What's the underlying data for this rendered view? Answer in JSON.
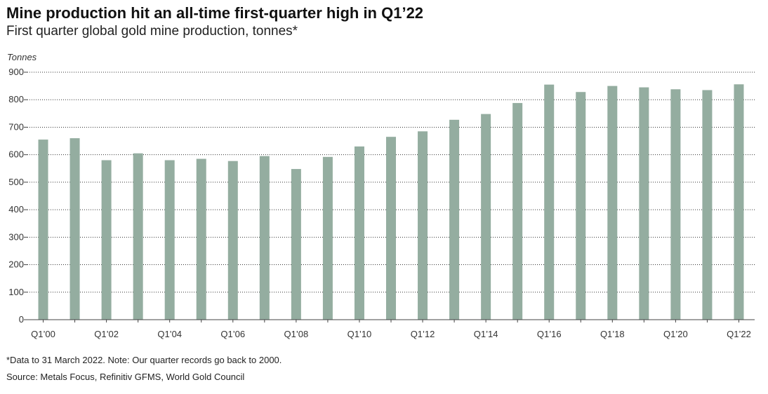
{
  "header": {
    "title": "Mine production hit an all-time first-quarter high in Q1’22",
    "subtitle": "First quarter global gold mine production, tonnes*"
  },
  "footer": {
    "note": "*Data to 31 March 2022. Note: Our quarter records go back to 2000.",
    "source": "Source: Metals Focus, Refinitiv GFMS, World Gold Council"
  },
  "colors": {
    "bar": "#94ada0",
    "grid": "#333333",
    "axis": "#444444"
  },
  "chart_data": {
    "type": "bar",
    "title": "Mine production hit an all-time first-quarter high in Q1’22",
    "subtitle": "First quarter global gold mine production, tonnes*",
    "xlabel": "",
    "ylabel": "Tonnes",
    "ylim": [
      0,
      900
    ],
    "yticks": [
      0,
      100,
      200,
      300,
      400,
      500,
      600,
      700,
      800,
      900
    ],
    "grid": true,
    "legend": "none",
    "categories": [
      "Q1’00",
      "Q1’01",
      "Q1’02",
      "Q1’03",
      "Q1’04",
      "Q1’05",
      "Q1’06",
      "Q1’07",
      "Q1’08",
      "Q1’09",
      "Q1’10",
      "Q1’11",
      "Q1’12",
      "Q1’13",
      "Q1’14",
      "Q1’15",
      "Q1’16",
      "Q1’17",
      "Q1’18",
      "Q1’19",
      "Q1’20",
      "Q1’21",
      "Q1’22"
    ],
    "tick_labels": [
      "Q1’00",
      "Q1’02",
      "Q1’04",
      "Q1’06",
      "Q1’08",
      "Q1’10",
      "Q1’12",
      "Q1’14",
      "Q1’16",
      "Q1’18",
      "Q1’20",
      "Q1’22"
    ],
    "values": [
      655,
      660,
      580,
      605,
      580,
      585,
      577,
      595,
      548,
      592,
      630,
      665,
      685,
      727,
      748,
      788,
      855,
      828,
      850,
      845,
      838,
      835,
      856
    ]
  }
}
